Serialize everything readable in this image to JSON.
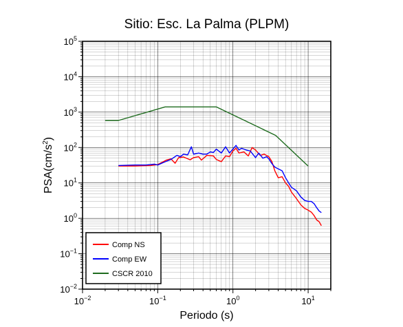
{
  "chart_data": {
    "type": "line",
    "title": "Sitio: Esc. La Palma (PLPM)",
    "xlabel": "Periodo (s)",
    "ylabel_prefix": "PSA(cm/s",
    "ylabel_sup": "2",
    "ylabel_suffix": ")",
    "xscale": "log",
    "yscale": "log",
    "xlim": [
      0.01,
      20
    ],
    "ylim": [
      0.01,
      100000
    ],
    "grid": true,
    "legend_position": "bottom-left",
    "x_ticks": [
      {
        "base": "10",
        "exp": "−2"
      },
      {
        "base": "10",
        "exp": "−1"
      },
      {
        "base": "10",
        "exp": "0"
      },
      {
        "base": "10",
        "exp": "1"
      }
    ],
    "y_ticks": [
      {
        "base": "10",
        "exp": "−2"
      },
      {
        "base": "10",
        "exp": "−1"
      },
      {
        "base": "10",
        "exp": "0"
      },
      {
        "base": "10",
        "exp": "1"
      },
      {
        "base": "10",
        "exp": "2"
      },
      {
        "base": "10",
        "exp": "3"
      },
      {
        "base": "10",
        "exp": "4"
      },
      {
        "base": "10",
        "exp": "5"
      }
    ],
    "series": [
      {
        "name": "Comp NS",
        "color": "#ff0000",
        "points": [
          [
            0.03,
            30
          ],
          [
            0.05,
            30
          ],
          [
            0.08,
            31
          ],
          [
            0.1,
            33
          ],
          [
            0.13,
            44
          ],
          [
            0.15,
            48
          ],
          [
            0.17,
            36
          ],
          [
            0.19,
            52
          ],
          [
            0.22,
            54
          ],
          [
            0.27,
            45
          ],
          [
            0.3,
            52
          ],
          [
            0.35,
            55
          ],
          [
            0.38,
            44
          ],
          [
            0.45,
            60
          ],
          [
            0.55,
            58
          ],
          [
            0.6,
            46
          ],
          [
            0.7,
            40
          ],
          [
            0.8,
            58
          ],
          [
            0.9,
            55
          ],
          [
            1.0,
            80
          ],
          [
            1.1,
            95
          ],
          [
            1.2,
            70
          ],
          [
            1.4,
            75
          ],
          [
            1.6,
            58
          ],
          [
            1.8,
            100
          ],
          [
            2.0,
            85
          ],
          [
            2.3,
            60
          ],
          [
            2.6,
            65
          ],
          [
            3.0,
            55
          ],
          [
            3.3,
            40
          ],
          [
            3.6,
            22
          ],
          [
            4.0,
            14
          ],
          [
            4.5,
            15
          ],
          [
            5.0,
            10
          ],
          [
            5.5,
            8
          ],
          [
            6.0,
            5.5
          ],
          [
            7.0,
            3.6
          ],
          [
            8.0,
            2.4
          ],
          [
            9.0,
            1.9
          ],
          [
            10.0,
            1.7
          ],
          [
            11.0,
            1.5
          ],
          [
            12.0,
            1.2
          ],
          [
            13.0,
            0.9
          ],
          [
            14.0,
            0.8
          ],
          [
            15.0,
            0.62
          ]
        ]
      },
      {
        "name": "Comp EW",
        "color": "#0000ff",
        "points": [
          [
            0.03,
            31
          ],
          [
            0.05,
            32
          ],
          [
            0.07,
            32
          ],
          [
            0.09,
            34
          ],
          [
            0.1,
            32
          ],
          [
            0.12,
            38
          ],
          [
            0.15,
            46
          ],
          [
            0.18,
            60
          ],
          [
            0.2,
            55
          ],
          [
            0.22,
            65
          ],
          [
            0.25,
            62
          ],
          [
            0.28,
            105
          ],
          [
            0.3,
            65
          ],
          [
            0.35,
            70
          ],
          [
            0.4,
            65
          ],
          [
            0.45,
            65
          ],
          [
            0.5,
            75
          ],
          [
            0.55,
            72
          ],
          [
            0.6,
            90
          ],
          [
            0.7,
            70
          ],
          [
            0.8,
            105
          ],
          [
            0.9,
            70
          ],
          [
            1.0,
            90
          ],
          [
            1.1,
            115
          ],
          [
            1.2,
            85
          ],
          [
            1.3,
            95
          ],
          [
            1.5,
            85
          ],
          [
            1.7,
            80
          ],
          [
            2.0,
            52
          ],
          [
            2.2,
            70
          ],
          [
            2.5,
            50
          ],
          [
            2.8,
            55
          ],
          [
            3.0,
            48
          ],
          [
            3.3,
            35
          ],
          [
            3.6,
            28
          ],
          [
            4.0,
            25
          ],
          [
            4.5,
            22
          ],
          [
            5.0,
            14
          ],
          [
            5.5,
            10
          ],
          [
            6.0,
            7.5
          ],
          [
            7.0,
            6
          ],
          [
            8.0,
            4
          ],
          [
            9.0,
            3.2
          ],
          [
            10.0,
            3
          ],
          [
            11.0,
            3
          ],
          [
            12.0,
            2.6
          ],
          [
            13.0,
            2
          ],
          [
            14.0,
            1.6
          ],
          [
            15.0,
            1.45
          ]
        ]
      },
      {
        "name": "CSCR 2010",
        "color": "#1e6b1e",
        "points": [
          [
            0.02,
            580
          ],
          [
            0.03,
            580
          ],
          [
            0.125,
            1400
          ],
          [
            0.6,
            1400
          ],
          [
            3.7,
            220
          ],
          [
            10.0,
            30
          ]
        ]
      }
    ]
  }
}
